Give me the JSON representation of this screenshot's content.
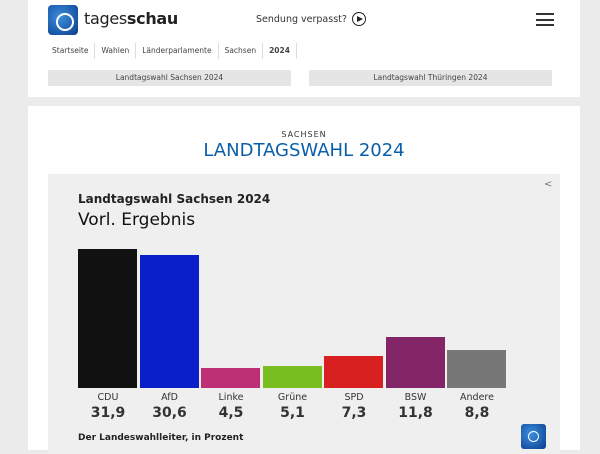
{
  "header": {
    "brand_light": "tages",
    "brand_bold": "schau",
    "missed": "Sendung verpasst?"
  },
  "breadcrumb": [
    "Startseite",
    "Wahlen",
    "Länderparlamente",
    "Sachsen",
    "2024"
  ],
  "tabs": [
    "Landtagswahl Sachsen 2024",
    "Landtagswahl Thüringen 2024"
  ],
  "main": {
    "kicker": "SACHSEN",
    "title": "LANDTAGSWAHL 2024"
  },
  "chart_data": {
    "type": "bar",
    "title": "Landtagswahl Sachsen 2024",
    "subtitle": "Vorl. Ergebnis",
    "categories": [
      "CDU",
      "AfD",
      "Linke",
      "Grüne",
      "SPD",
      "BSW",
      "Andere"
    ],
    "values": [
      31.9,
      30.6,
      4.5,
      5.1,
      7.3,
      11.8,
      8.8
    ],
    "value_labels": [
      "31,9",
      "30,6",
      "4,5",
      "5,1",
      "7,3",
      "11,8",
      "8,8"
    ],
    "colors": [
      "#111111",
      "#0a1fc8",
      "#be3075",
      "#78be20",
      "#d92020",
      "#832567",
      "#777777"
    ],
    "source": "Der Landeswahlleiter, in Prozent",
    "ylim": [
      0,
      31.9
    ]
  }
}
